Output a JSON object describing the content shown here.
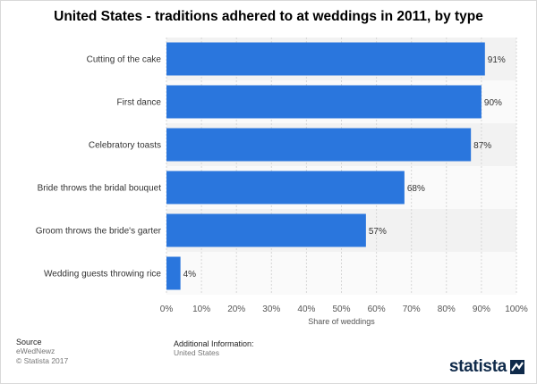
{
  "title": "United States - traditions adhered to at weddings in 2011, by type",
  "chart_data": {
    "type": "bar",
    "orientation": "horizontal",
    "categories": [
      "Cutting of the cake",
      "First dance",
      "Celebratory toasts",
      "Bride throws the bridal bouquet",
      "Groom throws the bride's garter",
      "Wedding guests throwing rice"
    ],
    "values": [
      91,
      90,
      87,
      68,
      57,
      4
    ],
    "value_labels": [
      "91%",
      "90%",
      "87%",
      "68%",
      "57%",
      "4%"
    ],
    "xlabel": "Share of weddings",
    "xlim": [
      0,
      100
    ],
    "ticks": [
      "0%",
      "10%",
      "20%",
      "30%",
      "40%",
      "50%",
      "60%",
      "70%",
      "80%",
      "90%",
      "100%"
    ],
    "bar_color": "#2a76dd",
    "grid": true
  },
  "footer": {
    "source_label": "Source",
    "source_lines": [
      "eWedNewz",
      "© Statista 2017"
    ],
    "info_label": "Additional Information:",
    "info_lines": [
      "United States"
    ]
  },
  "brand": {
    "name": "statista",
    "icon": "statista-logo-icon",
    "color": "#0f2a4a"
  }
}
